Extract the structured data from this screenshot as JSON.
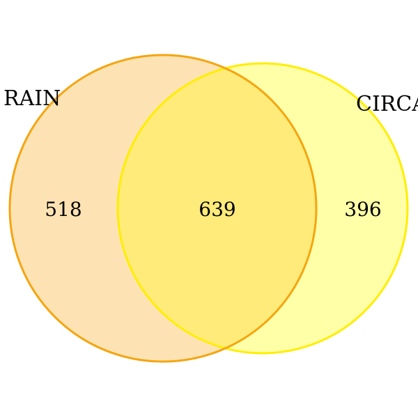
{
  "sets": [
    {
      "name": "RAIN",
      "fill": "#fde3b3",
      "stroke": "#f5a510"
    },
    {
      "name": "CIRCA",
      "fill": "#ffffa8",
      "stroke": "#ffee00"
    }
  ],
  "intersection_fill": "#ffeb7a",
  "counts": {
    "only_rain": "518",
    "both": "639",
    "only_circa": "396"
  }
}
